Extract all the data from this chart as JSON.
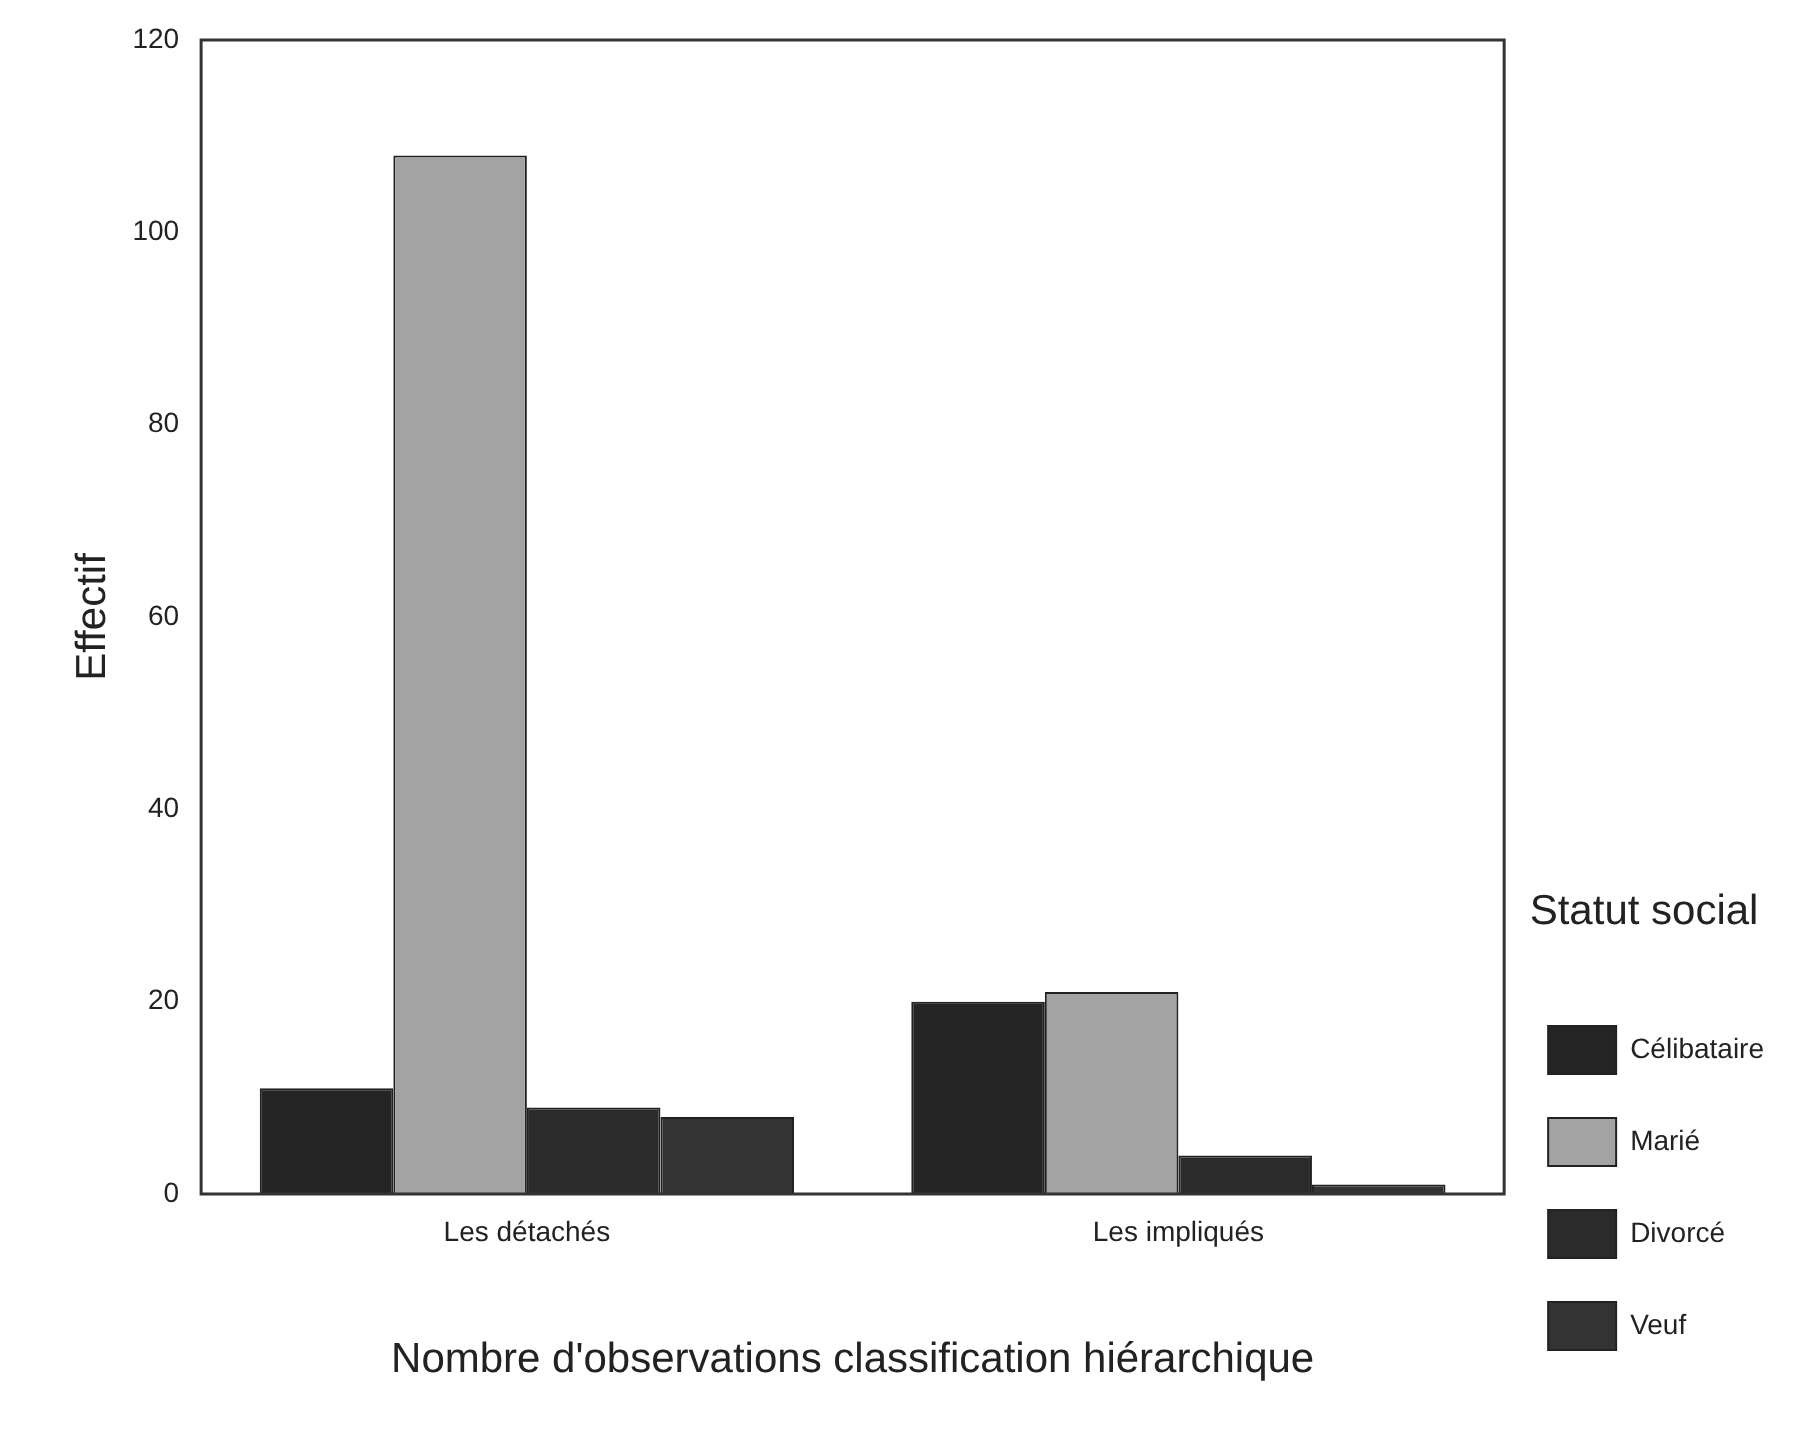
{
  "chart_data": {
    "type": "bar",
    "xlabel": "Nombre d'observations classification hiérarchique",
    "ylabel": "Effectif",
    "legend_title": "Statut social",
    "categories": [
      "Les détachés",
      "Les impliqués"
    ],
    "series": [
      {
        "name": "Célibataire",
        "color": "#252525",
        "values": [
          11,
          20
        ]
      },
      {
        "name": "Marié",
        "color": "#a3a3a3",
        "values": [
          108,
          21
        ]
      },
      {
        "name": "Divorcé",
        "color": "#2b2b2b",
        "values": [
          9,
          4
        ]
      },
      {
        "name": "Veuf",
        "color": "#333333",
        "values": [
          8,
          1
        ]
      }
    ],
    "ylim": [
      0,
      120
    ],
    "yticks": [
      0,
      20,
      40,
      60,
      80,
      100,
      120
    ],
    "grid": false,
    "legend": "right"
  }
}
